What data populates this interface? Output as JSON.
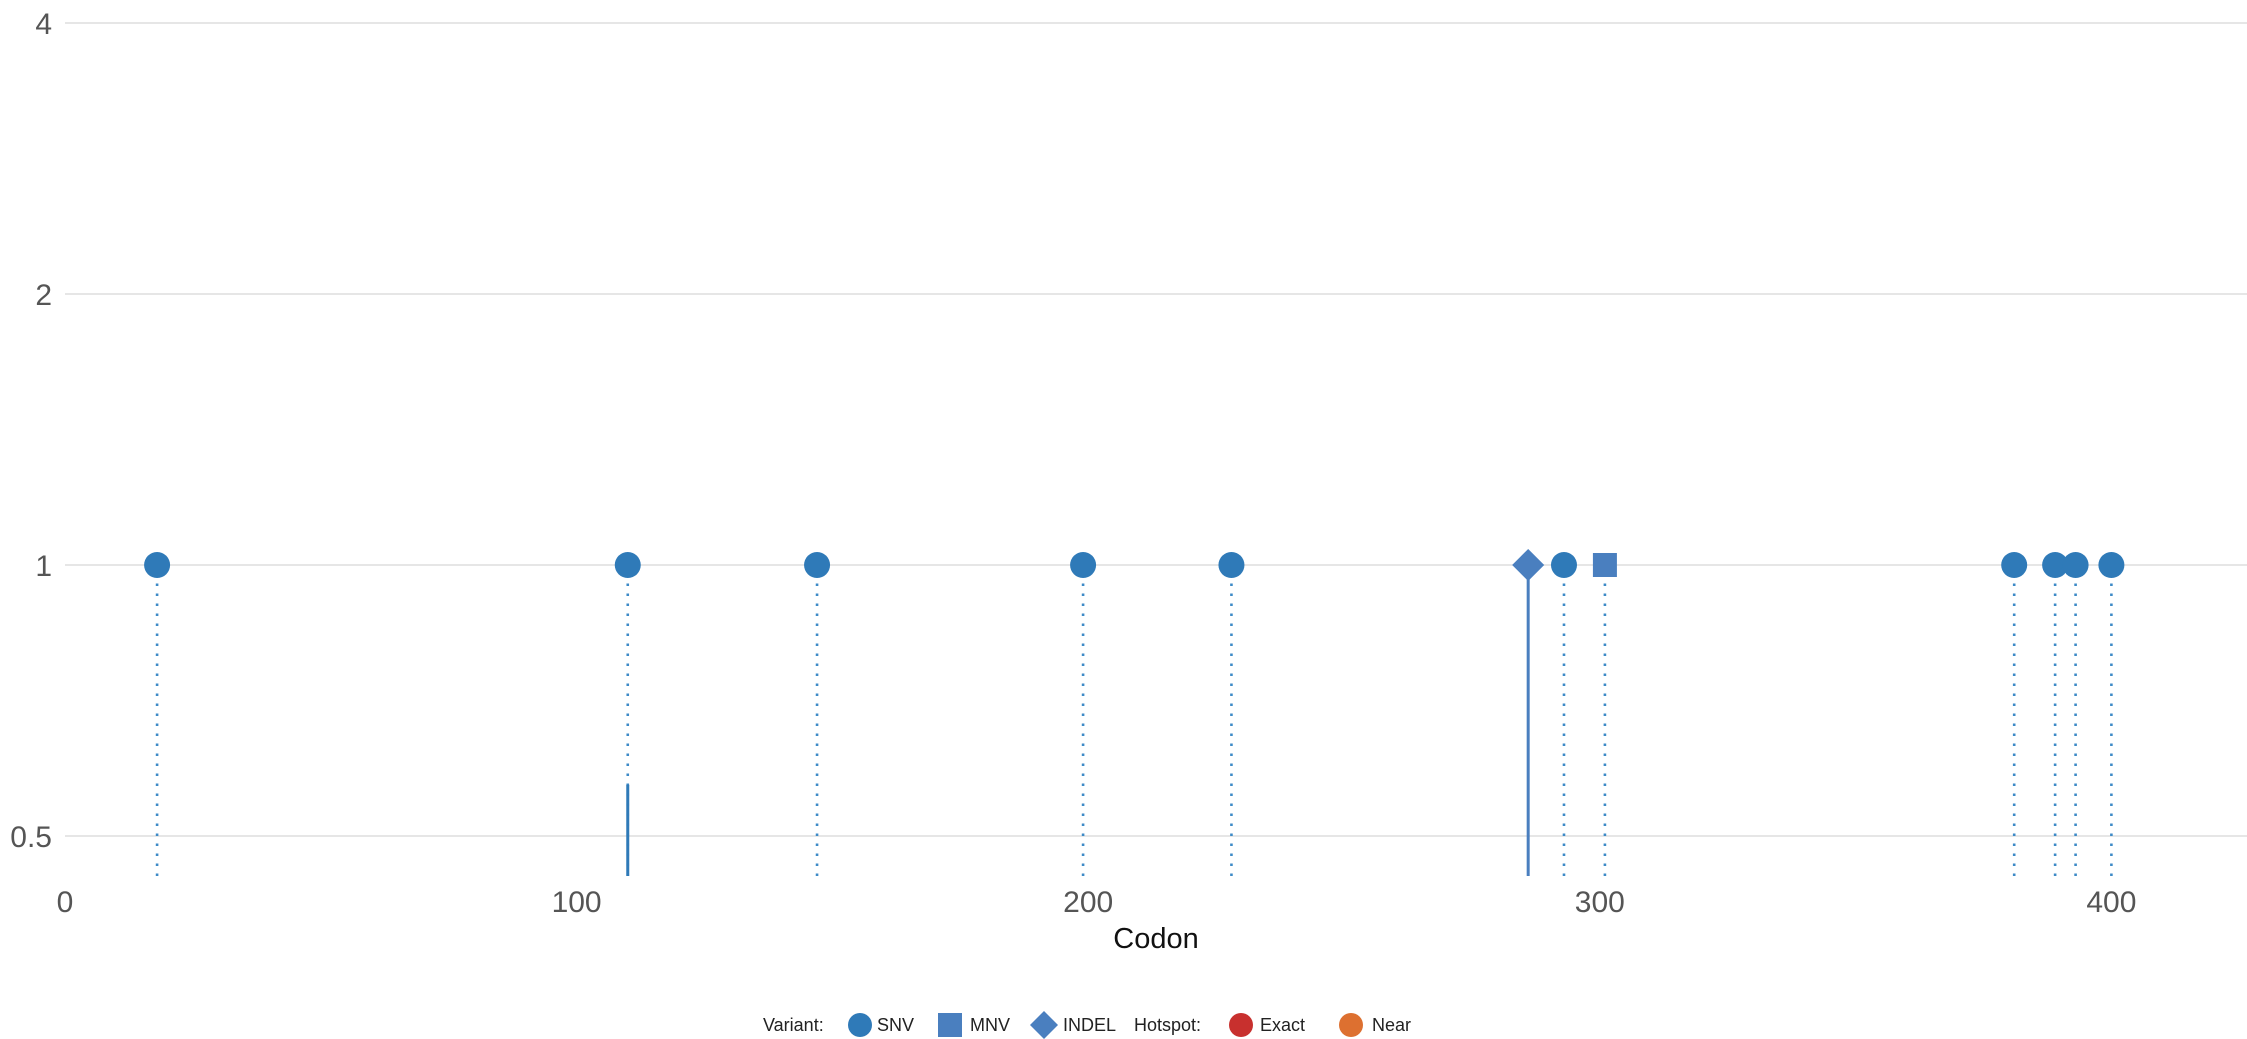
{
  "colors": {
    "snv": "#2f7ab8",
    "mnv": "#4a7fbf",
    "indel": "#4a7fbf",
    "exact": "#c8302e",
    "near": "#dd7030",
    "grid": "#e6e6e6"
  },
  "chart_data": {
    "type": "scatter",
    "subtype": "lollipop",
    "title": "",
    "xlabel": "Codon",
    "ylabel": "",
    "xlim": [
      0,
      425
    ],
    "xticks": [
      0,
      100,
      200,
      300,
      400
    ],
    "yscale": "log2",
    "ylim": [
      0.42,
      4
    ],
    "yticks": [
      0.5,
      1,
      2,
      4
    ],
    "grid": "horizontal",
    "legend_position": "bottom",
    "points": [
      {
        "codon": 18,
        "y": 1,
        "type": "SNV",
        "stem": "dotted"
      },
      {
        "codon": 110,
        "y": 1,
        "type": "SNV",
        "stem": "dotted",
        "solid_to": 0.57
      },
      {
        "codon": 147,
        "y": 1,
        "type": "SNV",
        "stem": "dotted"
      },
      {
        "codon": 199,
        "y": 1,
        "type": "SNV",
        "stem": "dotted"
      },
      {
        "codon": 228,
        "y": 1,
        "type": "SNV",
        "stem": "dotted"
      },
      {
        "codon": 286,
        "y": 1,
        "type": "INDEL",
        "stem": "solid"
      },
      {
        "codon": 293,
        "y": 1,
        "type": "SNV",
        "stem": "dotted"
      },
      {
        "codon": 301,
        "y": 1,
        "type": "MNV",
        "stem": "dotted"
      },
      {
        "codon": 381,
        "y": 1,
        "type": "SNV",
        "stem": "dotted"
      },
      {
        "codon": 389,
        "y": 1,
        "type": "SNV",
        "stem": "dotted"
      },
      {
        "codon": 393,
        "y": 1,
        "type": "SNV",
        "stem": "dotted"
      },
      {
        "codon": 400,
        "y": 1,
        "type": "SNV",
        "stem": "dotted"
      }
    ],
    "legend": {
      "variant_label": "Variant:",
      "variant_items": [
        {
          "label": "SNV",
          "shape": "circle"
        },
        {
          "label": "MNV",
          "shape": "square"
        },
        {
          "label": "INDEL",
          "shape": "diamond"
        }
      ],
      "hotspot_label": "Hotspot:",
      "hotspot_items": [
        {
          "label": "Exact",
          "color_key": "exact"
        },
        {
          "label": "Near",
          "color_key": "near"
        }
      ]
    }
  }
}
